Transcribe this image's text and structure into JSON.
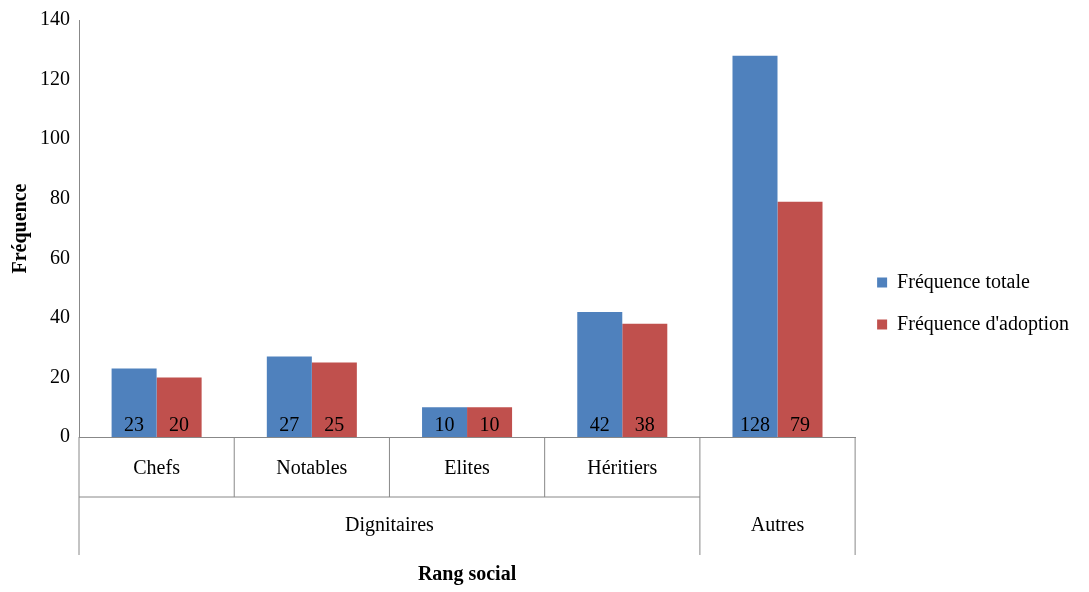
{
  "chart_data": {
    "type": "bar",
    "xlabel": "Rang social",
    "ylabel": "Fréquence",
    "categories": [
      "Chefs",
      "Notables",
      "Elites",
      "Héritiers",
      null
    ],
    "series": [
      {
        "name": "Fréquence totale",
        "color": "#4f81bd",
        "values": [
          23,
          27,
          10,
          42,
          128
        ]
      },
      {
        "name": "Fréquence d'adoption",
        "color": "#c0504d",
        "values": [
          20,
          25,
          10,
          38,
          79
        ]
      }
    ],
    "ylim": [
      0,
      140
    ],
    "yticks": [
      0,
      20,
      40,
      60,
      80,
      100,
      120,
      140
    ],
    "grid": false,
    "legend": "right",
    "data_labels": true,
    "annotations": [
      "Dignitaires",
      "Autres"
    ]
  }
}
